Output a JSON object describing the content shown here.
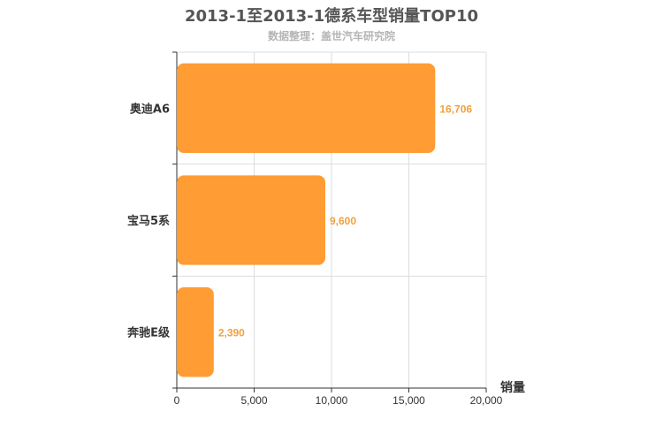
{
  "colors": {
    "bar": "#ff9c33",
    "data_label": "#f0a040",
    "grid": "#dddddd",
    "axis": "#333333"
  },
  "chart_data": {
    "type": "bar",
    "orientation": "horizontal",
    "title": "2013-1至2013-1德系车型销量TOP10",
    "subtitle": "数据整理：盖世汽车研究院",
    "categories": [
      "奥迪A6",
      "宝马5系",
      "奔驰E级"
    ],
    "values": [
      16706,
      9600,
      2390
    ],
    "value_labels": [
      "16,706",
      "9,600",
      "2,390"
    ],
    "xlabel": "销量",
    "ylabel": "",
    "xlim": [
      0,
      20000
    ],
    "xticks": [
      0,
      5000,
      10000,
      15000,
      20000
    ],
    "xtick_labels": [
      "0",
      "5,000",
      "10,000",
      "15,000",
      "20,000"
    ],
    "grid": true,
    "legend": "none"
  }
}
